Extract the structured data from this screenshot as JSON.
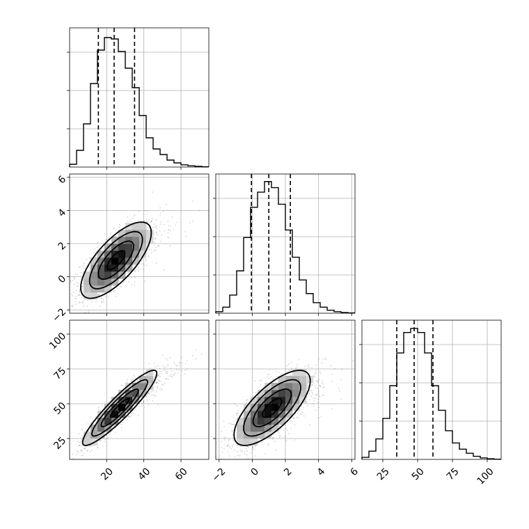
{
  "chart_data": {
    "type": "corner",
    "grid": true,
    "parameters": [
      {
        "id": "p0",
        "range": [
          0,
          75
        ],
        "ticks": [
          20,
          40,
          60
        ],
        "tick_labels": [
          "20",
          "40",
          "60"
        ],
        "hist_edges_start": 0,
        "hist_edges_step": 3.75,
        "hist_counts": [
          2,
          12,
          31,
          60,
          84,
          93,
          92,
          83,
          71,
          57,
          37,
          21,
          13,
          9,
          5,
          3,
          1.6,
          0.9,
          0.5,
          0.2
        ],
        "hist_max": 100,
        "quantiles": [
          15.5,
          24.0,
          35.0
        ]
      },
      {
        "id": "p1",
        "range": [
          -2.2,
          6.2
        ],
        "ticks": [
          -2,
          0,
          2,
          4,
          6
        ],
        "tick_labels": [
          "−2",
          "0",
          "2",
          "4",
          "6"
        ],
        "hist_edges_start": -2.2,
        "hist_edges_step": 0.42,
        "hist_counts": [
          1,
          4,
          12,
          28,
          50,
          70,
          80,
          87,
          83,
          72,
          55,
          37,
          22,
          13,
          7,
          4,
          2,
          1,
          0.5,
          0.2
        ],
        "hist_max": 92,
        "quantiles": [
          -0.05,
          1.0,
          2.3
        ]
      },
      {
        "id": "p2",
        "range": [
          10,
          110
        ],
        "ticks": [
          25,
          50,
          75,
          100
        ],
        "tick_labels": [
          "25",
          "50",
          "75",
          "100"
        ],
        "hist_edges_start": 10,
        "hist_edges_step": 5,
        "hist_counts": [
          1,
          4,
          10,
          20,
          36,
          52,
          62,
          64,
          62,
          52,
          36,
          24,
          14,
          8,
          5,
          3,
          1.5,
          0.7,
          0.3,
          0.1
        ],
        "hist_max": 68,
        "quantiles": [
          35,
          47.5,
          61
        ]
      }
    ],
    "pairs": [
      {
        "x": "p0",
        "y": "p1",
        "mean": [
          25,
          1.0
        ],
        "sd": [
          9.5,
          1.15
        ],
        "rho": 0.72
      },
      {
        "x": "p0",
        "y": "p2",
        "mean": [
          27,
          47
        ],
        "sd": [
          10,
          13.5
        ],
        "rho": 0.92
      },
      {
        "x": "p1",
        "y": "p2",
        "mean": [
          1.2,
          47
        ],
        "sd": [
          1.15,
          13.5
        ],
        "rho": 0.72
      }
    ],
    "contour_levels_sigma": [
      0.5,
      1.0,
      1.5,
      2.0
    ]
  }
}
